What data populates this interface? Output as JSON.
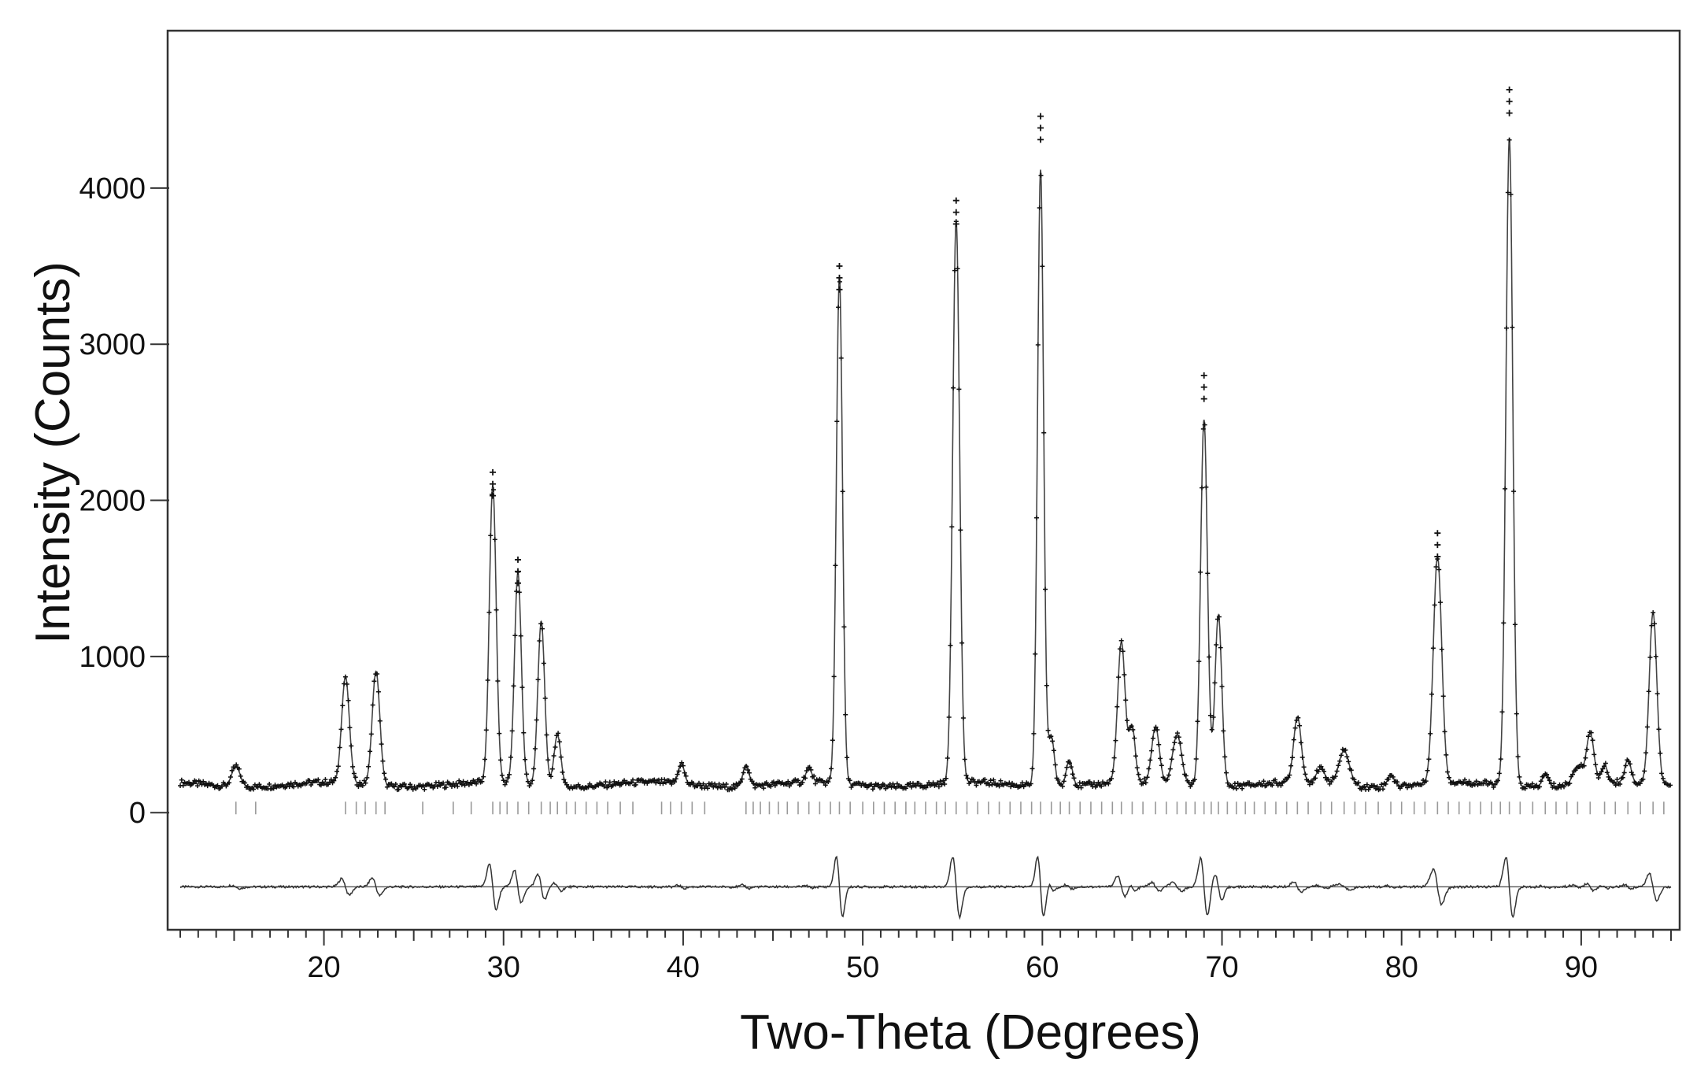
{
  "chart_data": {
    "type": "line",
    "title": "",
    "xlabel": "Two-Theta (Degrees)",
    "ylabel": "Intensity (Counts)",
    "xlim": [
      11.5,
      95
    ],
    "ylim": [
      -750,
      4700
    ],
    "x_ticks": [
      "20",
      "30",
      "40",
      "50",
      "60",
      "70",
      "80",
      "90"
    ],
    "y_ticks": [
      "0",
      "1000",
      "2000",
      "3000",
      "4000"
    ],
    "x_minor_tick_step": 1,
    "grid": false,
    "legend": "none",
    "background": 180,
    "peaks": [
      {
        "x": 15.1,
        "h": 130,
        "w": 0.55
      },
      {
        "x": 21.2,
        "h": 680,
        "w": 0.5
      },
      {
        "x": 22.9,
        "h": 730,
        "w": 0.5
      },
      {
        "x": 29.4,
        "h": 1900,
        "w": 0.45
      },
      {
        "x": 30.8,
        "h": 1350,
        "w": 0.45
      },
      {
        "x": 32.1,
        "h": 1050,
        "w": 0.45
      },
      {
        "x": 33.0,
        "h": 330,
        "w": 0.45
      },
      {
        "x": 39.9,
        "h": 130,
        "w": 0.4
      },
      {
        "x": 43.5,
        "h": 140,
        "w": 0.4
      },
      {
        "x": 47.0,
        "h": 90,
        "w": 0.4
      },
      {
        "x": 48.7,
        "h": 3250,
        "w": 0.4
      },
      {
        "x": 55.2,
        "h": 3600,
        "w": 0.45
      },
      {
        "x": 59.9,
        "h": 3950,
        "w": 0.4
      },
      {
        "x": 60.5,
        "h": 320,
        "w": 0.4
      },
      {
        "x": 61.5,
        "h": 170,
        "w": 0.4
      },
      {
        "x": 64.4,
        "h": 900,
        "w": 0.5
      },
      {
        "x": 65.0,
        "h": 350,
        "w": 0.4
      },
      {
        "x": 66.3,
        "h": 360,
        "w": 0.5
      },
      {
        "x": 67.5,
        "h": 320,
        "w": 0.6
      },
      {
        "x": 69.0,
        "h": 2350,
        "w": 0.45
      },
      {
        "x": 69.8,
        "h": 1100,
        "w": 0.45
      },
      {
        "x": 74.2,
        "h": 420,
        "w": 0.5
      },
      {
        "x": 75.5,
        "h": 90,
        "w": 0.6
      },
      {
        "x": 76.8,
        "h": 220,
        "w": 0.7
      },
      {
        "x": 79.4,
        "h": 80,
        "w": 0.4
      },
      {
        "x": 82.0,
        "h": 1450,
        "w": 0.55
      },
      {
        "x": 86.0,
        "h": 4150,
        "w": 0.45
      },
      {
        "x": 88.0,
        "h": 80,
        "w": 0.4
      },
      {
        "x": 89.8,
        "h": 120,
        "w": 0.6
      },
      {
        "x": 90.5,
        "h": 320,
        "w": 0.5
      },
      {
        "x": 91.3,
        "h": 110,
        "w": 0.4
      },
      {
        "x": 92.6,
        "h": 150,
        "w": 0.4
      },
      {
        "x": 94.0,
        "h": 1100,
        "w": 0.5
      }
    ],
    "observed_spikes": [
      {
        "x": 29.4,
        "y": 2180
      },
      {
        "x": 30.8,
        "y": 1620
      },
      {
        "x": 48.7,
        "y": 3500
      },
      {
        "x": 55.2,
        "y": 3920
      },
      {
        "x": 59.9,
        "y": 4460
      },
      {
        "x": 69.0,
        "y": 2800
      },
      {
        "x": 82.0,
        "y": 1790
      },
      {
        "x": 86.0,
        "y": 4630
      }
    ],
    "difference_baseline": -475,
    "reflection_marker_level": 30,
    "reflection_positions": [
      15.1,
      16.2,
      21.2,
      21.8,
      22.3,
      22.9,
      23.4,
      25.5,
      27.2,
      28.2,
      29.4,
      29.8,
      30.2,
      30.8,
      31.4,
      32.1,
      32.6,
      33.0,
      33.5,
      34.0,
      34.6,
      35.2,
      35.8,
      36.5,
      37.2,
      38.8,
      39.3,
      39.9,
      40.5,
      41.2,
      43.5,
      43.9,
      44.3,
      44.8,
      45.3,
      45.8,
      46.4,
      47.0,
      47.6,
      48.2,
      48.7,
      49.3,
      50.0,
      50.6,
      51.2,
      51.8,
      52.4,
      52.9,
      53.5,
      54.1,
      54.6,
      55.2,
      55.8,
      56.4,
      57.0,
      57.6,
      58.2,
      58.8,
      59.4,
      59.9,
      60.5,
      61.0,
      61.5,
      62.1,
      62.7,
      63.3,
      63.9,
      64.4,
      65.0,
      65.6,
      66.3,
      66.9,
      67.5,
      68.0,
      68.5,
      69.0,
      69.4,
      69.8,
      70.3,
      70.8,
      71.3,
      71.8,
      72.4,
      73.0,
      73.6,
      74.2,
      74.8,
      75.5,
      76.1,
      76.8,
      77.4,
      78.0,
      78.7,
      79.4,
      80.0,
      80.7,
      81.3,
      82.0,
      82.6,
      83.2,
      83.8,
      84.4,
      85.0,
      85.5,
      86.0,
      86.6,
      87.3,
      88.0,
      88.6,
      89.2,
      89.8,
      90.5,
      91.3,
      91.9,
      92.6,
      93.3,
      94.0,
      94.6
    ]
  }
}
